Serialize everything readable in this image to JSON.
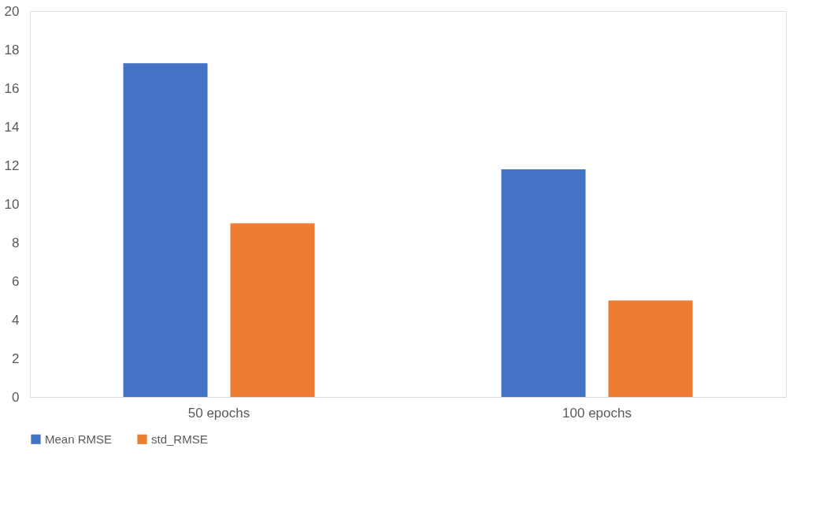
{
  "chart_data": {
    "type": "bar",
    "categories": [
      "50 epochs",
      "100 epochs"
    ],
    "series": [
      {
        "name": "Mean RMSE",
        "color": "#4472c4",
        "values": [
          17.3,
          11.8
        ]
      },
      {
        "name": "std_RMSE",
        "color": "#ed7d31",
        "values": [
          9.0,
          5.0
        ]
      }
    ],
    "ylim": [
      0,
      20
    ],
    "yticks": [
      0,
      2,
      4,
      6,
      8,
      10,
      12,
      14,
      16,
      18,
      20
    ],
    "grid": false,
    "legend": "bottom"
  }
}
